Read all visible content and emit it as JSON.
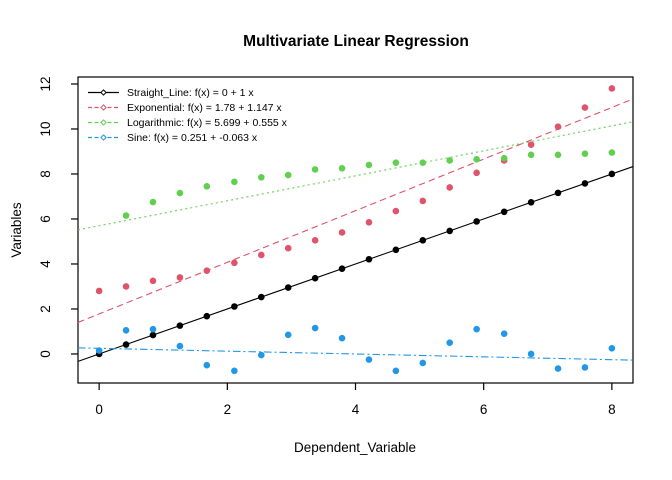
{
  "window": {
    "background": "#ffffff"
  },
  "chart_data": {
    "type": "scatter",
    "title": "Multivariate Linear Regression",
    "xlabel": "Dependent_Variable",
    "ylabel": "Variables",
    "xlim": [
      -0.33,
      8.33
    ],
    "ylim": [
      -1.29,
      12.31
    ],
    "x_ticks": [
      0,
      2,
      4,
      6,
      8
    ],
    "y_ticks": [
      0,
      2,
      4,
      6,
      8,
      10,
      12
    ],
    "grid": false,
    "legend_position": "top-left",
    "marker_size": 3.3,
    "x": [
      0,
      0.42,
      0.84,
      1.26,
      1.68,
      2.11,
      2.53,
      2.95,
      3.37,
      3.79,
      4.21,
      4.63,
      5.05,
      5.47,
      5.89,
      6.32,
      6.74,
      7.16,
      7.58,
      8
    ],
    "series": [
      {
        "name": "Straight_Line",
        "legend_label": "Straight_Line:  f(x) = 0 + 1 x",
        "color": "#000000",
        "marker": "filled-circle",
        "line_style": "solid",
        "fit": {
          "intercept": 0,
          "slope": 1
        },
        "values": [
          0,
          0.42,
          0.84,
          1.26,
          1.68,
          2.11,
          2.53,
          2.95,
          3.37,
          3.79,
          4.21,
          4.63,
          5.05,
          5.47,
          5.89,
          6.32,
          6.74,
          7.16,
          7.58,
          8
        ]
      },
      {
        "name": "Exponential",
        "legend_label": "Exponential:  f(x) = 1.78 + 1.147 x",
        "color": "#DF536B",
        "marker": "filled-circle",
        "line_style": "dashed",
        "fit": {
          "intercept": 1.78,
          "slope": 1.147
        },
        "values": [
          2.8,
          3.0,
          3.25,
          3.4,
          3.7,
          4.05,
          4.4,
          4.7,
          5.05,
          5.4,
          5.85,
          6.35,
          6.8,
          7.4,
          8.05,
          8.6,
          9.3,
          10.1,
          10.95,
          11.8
        ]
      },
      {
        "name": "Logarithmic",
        "legend_label": "Logarithmic:  f(x) = 5.699 + 0.555 x",
        "color": "#61D04F",
        "marker": "filled-circle",
        "line_style": "dotted",
        "fit": {
          "intercept": 5.699,
          "slope": 0.555
        },
        "values": [
          null,
          6.15,
          6.75,
          7.15,
          7.45,
          7.65,
          7.85,
          7.95,
          8.2,
          8.25,
          8.4,
          8.5,
          8.5,
          8.6,
          8.65,
          8.7,
          8.85,
          8.85,
          8.9,
          8.95
        ]
      },
      {
        "name": "Sine",
        "legend_label": "Sine:  f(x) = 0.251 + -0.063 x",
        "color": "#2297E6",
        "marker": "filled-circle",
        "line_style": "dashdot",
        "fit": {
          "intercept": 0.251,
          "slope": -0.063
        },
        "values": [
          0.15,
          1.05,
          1.1,
          0.35,
          -0.5,
          -0.75,
          -0.05,
          0.85,
          1.15,
          0.7,
          -0.25,
          -0.75,
          -0.4,
          0.5,
          1.1,
          0.9,
          0.0,
          -0.65,
          -0.6,
          0.25
        ]
      }
    ]
  }
}
